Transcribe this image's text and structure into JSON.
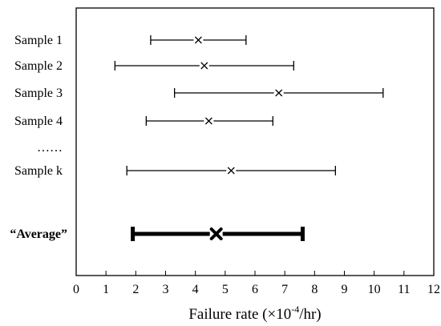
{
  "chart_data": {
    "type": "interval",
    "xlabel": {
      "prefix": "Failure rate (×10",
      "exponent": "-4",
      "suffix": "/hr)"
    },
    "xlim": [
      0,
      12
    ],
    "x_ticks": [
      0,
      1,
      2,
      3,
      4,
      5,
      6,
      7,
      8,
      9,
      10,
      11,
      12
    ],
    "grid": false,
    "rows": [
      {
        "label": "Sample 1",
        "low": 2.5,
        "estimate": 4.1,
        "high": 5.7,
        "style": "normal"
      },
      {
        "label": "Sample 2",
        "low": 1.3,
        "estimate": 4.3,
        "high": 7.3,
        "style": "normal"
      },
      {
        "label": "Sample 3",
        "low": 3.3,
        "estimate": 6.8,
        "high": 10.3,
        "style": "normal"
      },
      {
        "label": "Sample 4",
        "low": 2.35,
        "estimate": 4.45,
        "high": 6.6,
        "style": "normal"
      },
      {
        "label": "……",
        "low": null,
        "estimate": null,
        "high": null,
        "style": "ellipsis"
      },
      {
        "label": "Sample k",
        "low": 1.7,
        "estimate": 5.2,
        "high": 8.7,
        "style": "normal"
      },
      {
        "label": "“Average”",
        "low": 1.9,
        "estimate": 4.7,
        "high": 7.6,
        "style": "bold"
      }
    ]
  }
}
